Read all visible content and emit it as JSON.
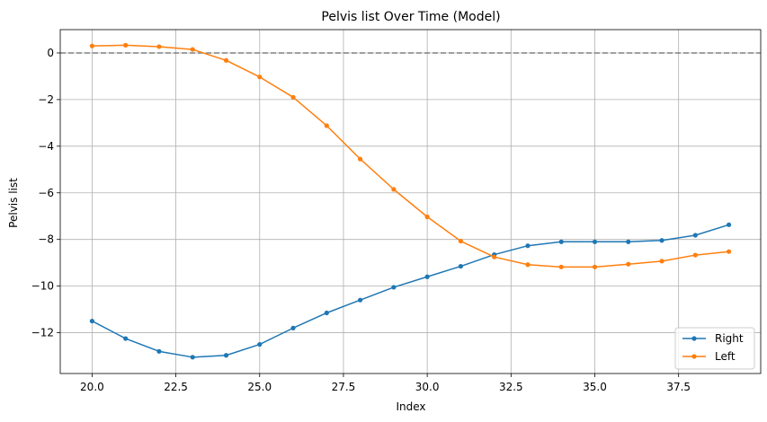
{
  "chart_data": {
    "type": "line",
    "title": "Pelvis list Over Time (Model)",
    "xlabel": "Index",
    "ylabel": "Pelvis list",
    "xlim": [
      19.05,
      39.95
    ],
    "ylim": [
      -13.75,
      1.0
    ],
    "xticks": [
      20.0,
      22.5,
      25.0,
      27.5,
      30.0,
      32.5,
      35.0,
      37.5
    ],
    "xtick_labels": [
      "20.0",
      "22.5",
      "25.0",
      "27.5",
      "30.0",
      "32.5",
      "35.0",
      "37.5"
    ],
    "yticks": [
      0,
      -2,
      -4,
      -6,
      -8,
      -10,
      -12
    ],
    "ytick_labels": [
      "0",
      "−2",
      "−4",
      "−6",
      "−8",
      "−10",
      "−12"
    ],
    "grid": true,
    "reference_line": {
      "y": 0,
      "style": "dashed",
      "color": "#808080"
    },
    "legend_position": "lower-right",
    "x": [
      20,
      21,
      22,
      23,
      24,
      25,
      26,
      27,
      28,
      29,
      30,
      31,
      32,
      33,
      34,
      35,
      36,
      37,
      38,
      39
    ],
    "series": [
      {
        "name": "Right",
        "color": "#1f77b4",
        "values": [
          -11.5,
          -12.25,
          -12.8,
          -13.05,
          -12.97,
          -12.5,
          -11.8,
          -11.15,
          -10.6,
          -10.05,
          -9.6,
          -9.15,
          -8.65,
          -8.27,
          -8.1,
          -8.1,
          -8.1,
          -8.04,
          -7.82,
          -7.37
        ]
      },
      {
        "name": "Left",
        "color": "#ff7f0e",
        "values": [
          0.3,
          0.33,
          0.27,
          0.15,
          -0.32,
          -1.03,
          -1.9,
          -3.12,
          -4.55,
          -5.85,
          -7.03,
          -8.07,
          -8.75,
          -9.08,
          -9.18,
          -9.18,
          -9.06,
          -8.93,
          -8.67,
          -8.52
        ]
      }
    ]
  }
}
